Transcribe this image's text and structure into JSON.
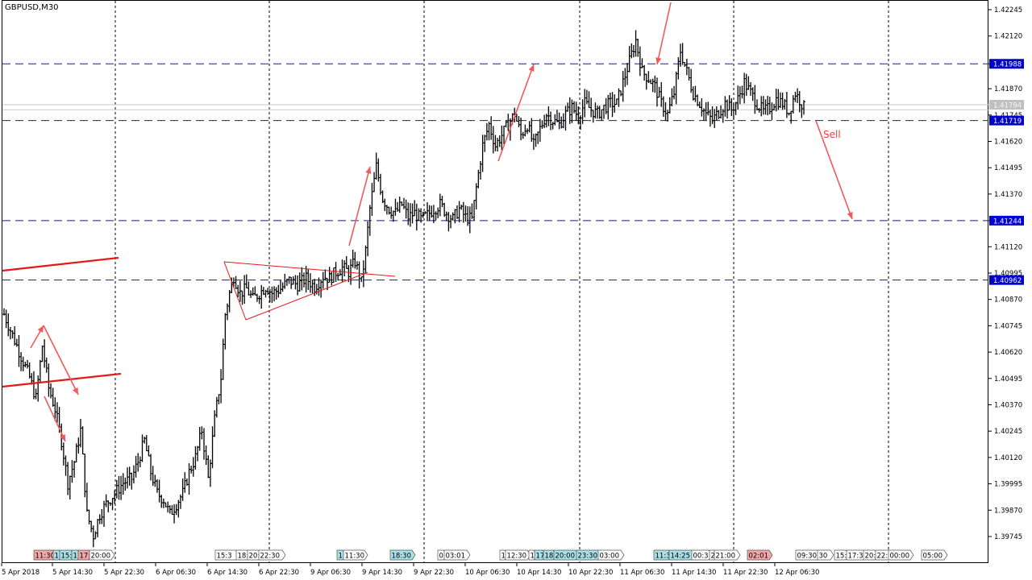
{
  "chart_data": {
    "type": "candlestick",
    "title": "GBPUSD,M30",
    "ylim": [
      1.3968,
      1.4228
    ],
    "y_ticks": [
      "1.42245",
      "1.42120",
      "1.41988",
      "1.41870",
      "1.41745",
      "1.41620",
      "1.41495",
      "1.41370",
      "1.41244",
      "1.41120",
      "1.40995",
      "1.40870",
      "1.40745",
      "1.40620",
      "1.40495",
      "1.40370",
      "1.40245",
      "1.40120",
      "1.39995",
      "1.39870",
      "1.39745"
    ],
    "x_ticks": [
      "5 Apr 2018",
      "5 Apr 14:30",
      "5 Apr 22:30",
      "6 Apr 06:30",
      "6 Apr 14:30",
      "6 Apr 22:30",
      "9 Apr 06:30",
      "9 Apr 14:30",
      "9 Apr 22:30",
      "10 Apr 06:30",
      "10 Apr 14:30",
      "10 Apr 22:30",
      "11 Apr 06:30",
      "11 Apr 14:30",
      "11 Apr 22:30",
      "12 Apr 06:30"
    ],
    "price_labels": [
      {
        "text": "1.41988",
        "value": 1.41988,
        "color": "#0000cc"
      },
      {
        "text": "1.41794",
        "value": 1.41794,
        "color": "#c0c0c0"
      },
      {
        "text": "1.41719",
        "value": 1.41719,
        "color": "#0000cc"
      },
      {
        "text": "1.41244",
        "value": 1.41244,
        "color": "#0000cc"
      },
      {
        "text": "1.40962",
        "value": 1.40962,
        "color": "#0000cc"
      }
    ],
    "horizontal_levels": [
      1.41988,
      1.41719,
      1.41244,
      1.40962
    ],
    "current_price_lines": [
      1.41794,
      1.4177
    ],
    "annotation": "Sell",
    "close_path": [
      [
        0,
        1.408
      ],
      [
        4,
        1.407
      ],
      [
        8,
        1.406
      ],
      [
        12,
        1.405
      ],
      [
        15,
        1.404
      ],
      [
        18,
        1.4065
      ],
      [
        21,
        1.4045
      ],
      [
        24,
        1.4035
      ],
      [
        27,
        1.402
      ],
      [
        30,
        1.4
      ],
      [
        33,
        1.401
      ],
      [
        36,
        1.4025
      ],
      [
        39,
        1.3985
      ],
      [
        42,
        1.3975
      ],
      [
        45,
        1.3985
      ],
      [
        48,
        1.399
      ],
      [
        52,
        1.3995
      ],
      [
        56,
        1.4
      ],
      [
        60,
        1.4002
      ],
      [
        63,
        1.401
      ],
      [
        66,
        1.402
      ],
      [
        69,
        1.4005
      ],
      [
        72,
        1.3995
      ],
      [
        75,
        1.3992
      ],
      [
        78,
        1.3985
      ],
      [
        81,
        1.399
      ],
      [
        84,
        1.3995
      ],
      [
        87,
        1.4005
      ],
      [
        90,
        1.4012
      ],
      [
        93,
        1.4025
      ],
      [
        96,
        1.4002
      ],
      [
        99,
        1.403
      ],
      [
        102,
        1.405
      ],
      [
        104,
        1.408
      ],
      [
        106,
        1.409
      ],
      [
        108,
        1.4098
      ],
      [
        111,
        1.409
      ],
      [
        114,
        1.4092
      ],
      [
        117,
        1.4087
      ],
      [
        120,
        1.409
      ],
      [
        123,
        1.4093
      ],
      [
        126,
        1.409
      ],
      [
        130,
        1.4092
      ],
      [
        134,
        1.4096
      ],
      [
        138,
        1.4094
      ],
      [
        142,
        1.4097
      ],
      [
        146,
        1.4093
      ],
      [
        150,
        1.4098
      ],
      [
        153,
        1.4097
      ],
      [
        156,
        1.41
      ],
      [
        159,
        1.4102
      ],
      [
        162,
        1.41
      ],
      [
        165,
        1.4105
      ],
      [
        168,
        1.4095
      ],
      [
        170,
        1.411
      ],
      [
        172,
        1.413
      ],
      [
        175,
        1.415
      ],
      [
        178,
        1.4135
      ],
      [
        181,
        1.413
      ],
      [
        184,
        1.4128
      ],
      [
        187,
        1.4132
      ],
      [
        190,
        1.4126
      ],
      [
        193,
        1.4128
      ],
      [
        196,
        1.4125
      ],
      [
        199,
        1.4127
      ],
      [
        202,
        1.413
      ],
      [
        205,
        1.4132
      ],
      [
        208,
        1.4128
      ],
      [
        211,
        1.4125
      ],
      [
        214,
        1.413
      ],
      [
        217,
        1.4126
      ],
      [
        220,
        1.4125
      ],
      [
        222,
        1.414
      ],
      [
        225,
        1.416
      ],
      [
        228,
        1.417
      ],
      [
        231,
        1.416
      ],
      [
        234,
        1.4165
      ],
      [
        237,
        1.417
      ],
      [
        240,
        1.4175
      ],
      [
        243,
        1.4165
      ],
      [
        246,
        1.417
      ],
      [
        249,
        1.416
      ],
      [
        252,
        1.4168
      ],
      [
        255,
        1.4175
      ],
      [
        258,
        1.4172
      ],
      [
        261,
        1.417
      ],
      [
        264,
        1.4175
      ],
      [
        267,
        1.4178
      ],
      [
        270,
        1.4174
      ],
      [
        273,
        1.418
      ],
      [
        276,
        1.4177
      ],
      [
        279,
        1.4175
      ],
      [
        282,
        1.4178
      ],
      [
        285,
        1.418
      ],
      [
        288,
        1.418
      ],
      [
        291,
        1.419
      ],
      [
        294,
        1.42
      ],
      [
        297,
        1.421
      ],
      [
        300,
        1.4195
      ],
      [
        303,
        1.4192
      ],
      [
        306,
        1.4188
      ],
      [
        309,
        1.418
      ],
      [
        312,
        1.4175
      ],
      [
        315,
        1.4185
      ],
      [
        318,
        1.4205
      ],
      [
        321,
        1.4195
      ],
      [
        324,
        1.4185
      ],
      [
        327,
        1.418
      ],
      [
        330,
        1.4175
      ],
      [
        333,
        1.4172
      ],
      [
        336,
        1.4176
      ],
      [
        339,
        1.418
      ],
      [
        342,
        1.4177
      ],
      [
        345,
        1.4182
      ],
      [
        348,
        1.419
      ],
      [
        351,
        1.4185
      ],
      [
        354,
        1.418
      ],
      [
        357,
        1.4176
      ],
      [
        360,
        1.4178
      ],
      [
        363,
        1.4182
      ],
      [
        366,
        1.418
      ],
      [
        369,
        1.4176
      ],
      [
        372,
        1.4185
      ],
      [
        375,
        1.418
      ],
      [
        376,
        1.4178
      ]
    ]
  },
  "tags": [
    {
      "text": "11:30",
      "color": "#f4a6a6"
    },
    {
      "text": "1",
      "color": "#a8e0e6"
    },
    {
      "text": "15:",
      "color": "#a8e0e6"
    },
    {
      "text": "1",
      "color": "#a8e0e6"
    },
    {
      "text": "17:3",
      "color": "#f4a6a6"
    },
    {
      "text": "20:00",
      "color": "#ffffff"
    },
    {
      "text": "15:3",
      "color": "#ffffff"
    },
    {
      "text": "18:1",
      "color": "#ffffff"
    },
    {
      "text": "20:",
      "color": "#ffffff"
    },
    {
      "text": "22:30",
      "color": "#ffffff"
    },
    {
      "text": "1",
      "color": "#a8e0e6"
    },
    {
      "text": "11:30",
      "color": "#ffffff"
    },
    {
      "text": "18:30",
      "color": "#a8e0e6"
    },
    {
      "text": "0",
      "color": "#ffffff"
    },
    {
      "text": "03:01",
      "color": "#ffffff"
    },
    {
      "text": "1",
      "color": "#ffffff"
    },
    {
      "text": "12:30",
      "color": "#ffffff"
    },
    {
      "text": "1",
      "color": "#ffffff"
    },
    {
      "text": "17",
      "color": "#a8e0e6"
    },
    {
      "text": "18",
      "color": "#a8e0e6"
    },
    {
      "text": "20:00",
      "color": "#a8e0e6"
    },
    {
      "text": "23:30",
      "color": "#a8e0e6"
    },
    {
      "text": "03:00",
      "color": "#ffffff"
    },
    {
      "text": "11:3",
      "color": "#a8e0e6"
    },
    {
      "text": "14:25",
      "color": "#a8e0e6"
    },
    {
      "text": "00:3",
      "color": "#ffffff"
    },
    {
      "text": "2",
      "color": "#ffffff"
    },
    {
      "text": "21:00",
      "color": "#ffffff"
    },
    {
      "text": "02:01",
      "color": "#f4a6a6"
    },
    {
      "text": "09:30",
      "color": "#ffffff"
    },
    {
      "text": "30",
      "color": "#ffffff"
    },
    {
      "text": "15:",
      "color": "#ffffff"
    },
    {
      "text": "17:3",
      "color": "#ffffff"
    },
    {
      "text": "20:",
      "color": "#ffffff"
    },
    {
      "text": "22:",
      "color": "#ffffff"
    },
    {
      "text": "00:00",
      "color": "#ffffff"
    },
    {
      "text": "05:00",
      "color": "#ffffff"
    }
  ],
  "colors": {
    "level": "#1a1aa8",
    "trend": "#e31a1a",
    "arrow": "#f05a5a",
    "candle": "#000000"
  }
}
